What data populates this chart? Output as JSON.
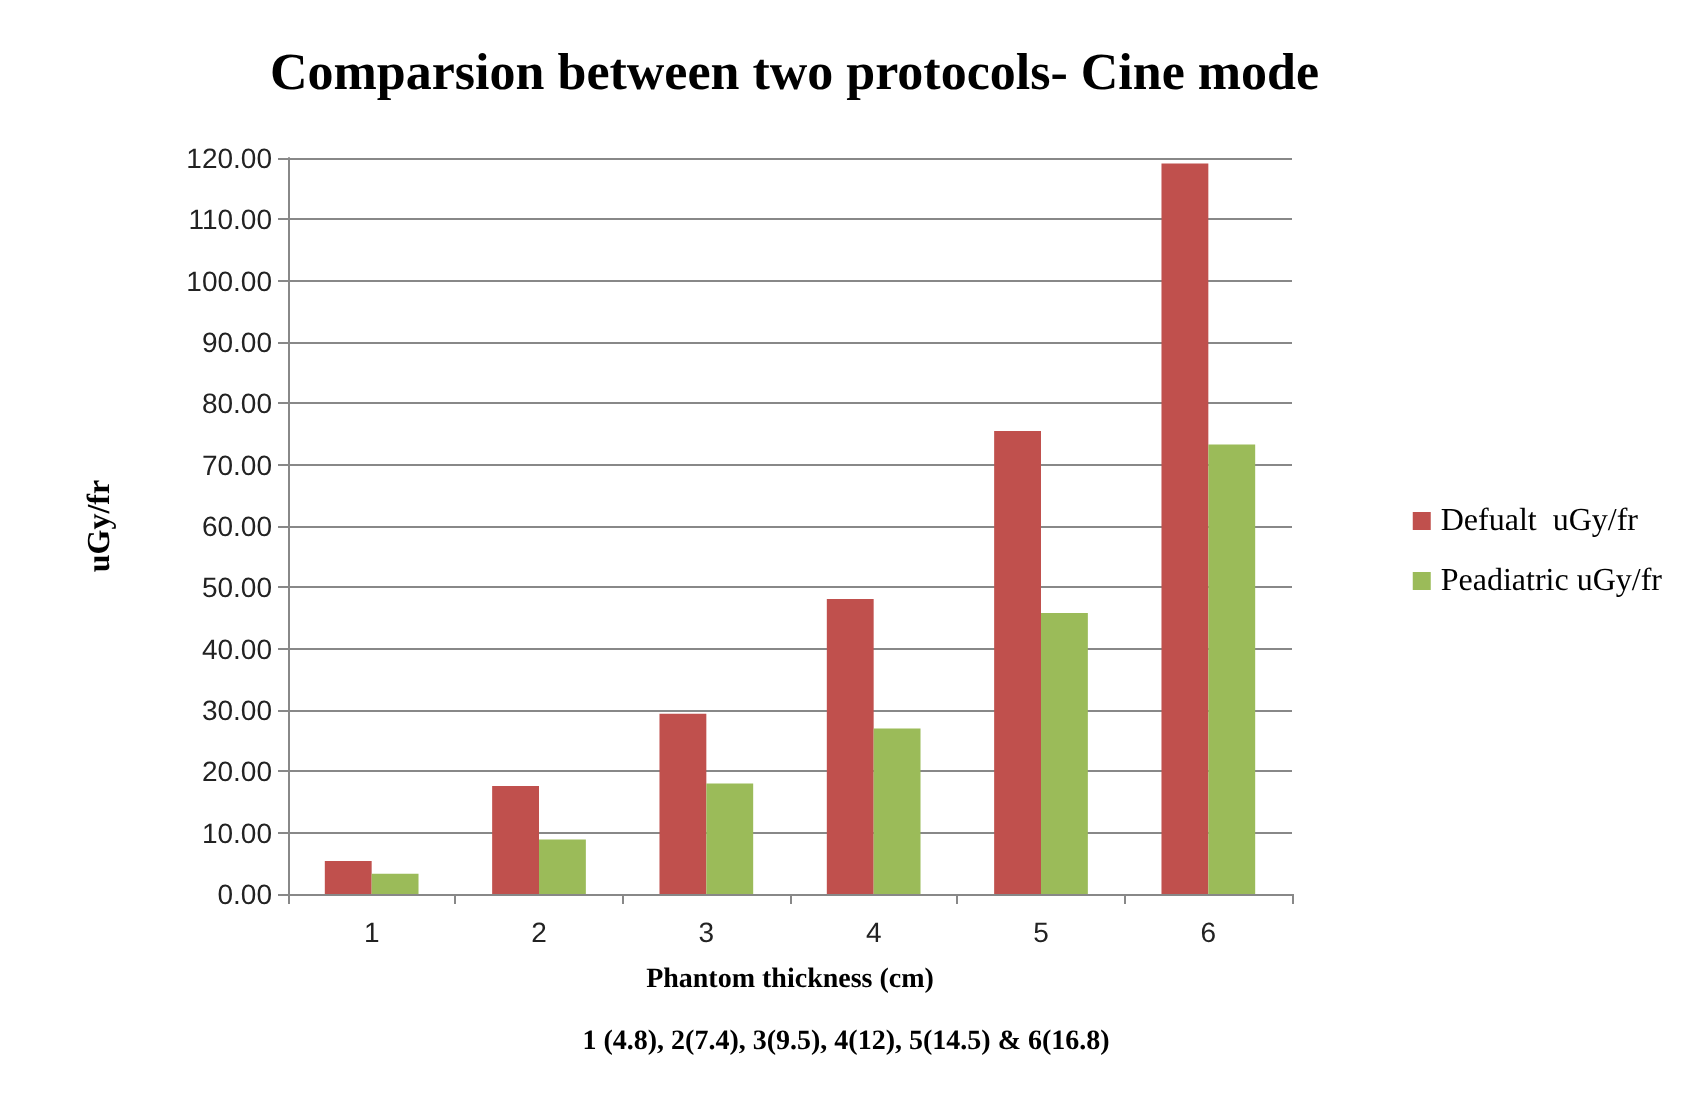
{
  "chart_data": {
    "type": "bar",
    "title": "Comparsion between two protocols- Cine mode",
    "categories": [
      "1",
      "2",
      "3",
      "4",
      "5",
      "6"
    ],
    "series": [
      {
        "name": "Defualt  uGy/fr",
        "color": "#c0504d",
        "values": [
          5.4,
          17.6,
          29.4,
          48.1,
          75.5,
          119.1
        ]
      },
      {
        "name": "Peadiatric uGy/fr",
        "color": "#9bbb59",
        "values": [
          3.3,
          8.9,
          18.0,
          27.0,
          45.8,
          73.3
        ]
      }
    ],
    "ylabel": "uGy/fr",
    "xlabel": "Phantom thickness (cm)",
    "annotations": [
      "1 (4.8), 2(7.4), 3(9.5), 4(12), 5(14.5) & 6(16.8)"
    ],
    "ylim": [
      0,
      120
    ],
    "yticks": [
      {
        "value": 0,
        "label": "0.00"
      },
      {
        "value": 10,
        "label": "10.00"
      },
      {
        "value": 20,
        "label": "20.00"
      },
      {
        "value": 30,
        "label": "30.00"
      },
      {
        "value": 40,
        "label": "40.00"
      },
      {
        "value": 50,
        "label": "50.00"
      },
      {
        "value": 60,
        "label": "60.00"
      },
      {
        "value": 70,
        "label": "70.00"
      },
      {
        "value": 80,
        "label": "80.00"
      },
      {
        "value": 90,
        "label": "90.00"
      },
      {
        "value": 100,
        "label": "100.00"
      },
      {
        "value": 110,
        "label": "110.00"
      },
      {
        "value": 120,
        "label": "120.00"
      }
    ],
    "grid": "y",
    "legend": "right"
  }
}
